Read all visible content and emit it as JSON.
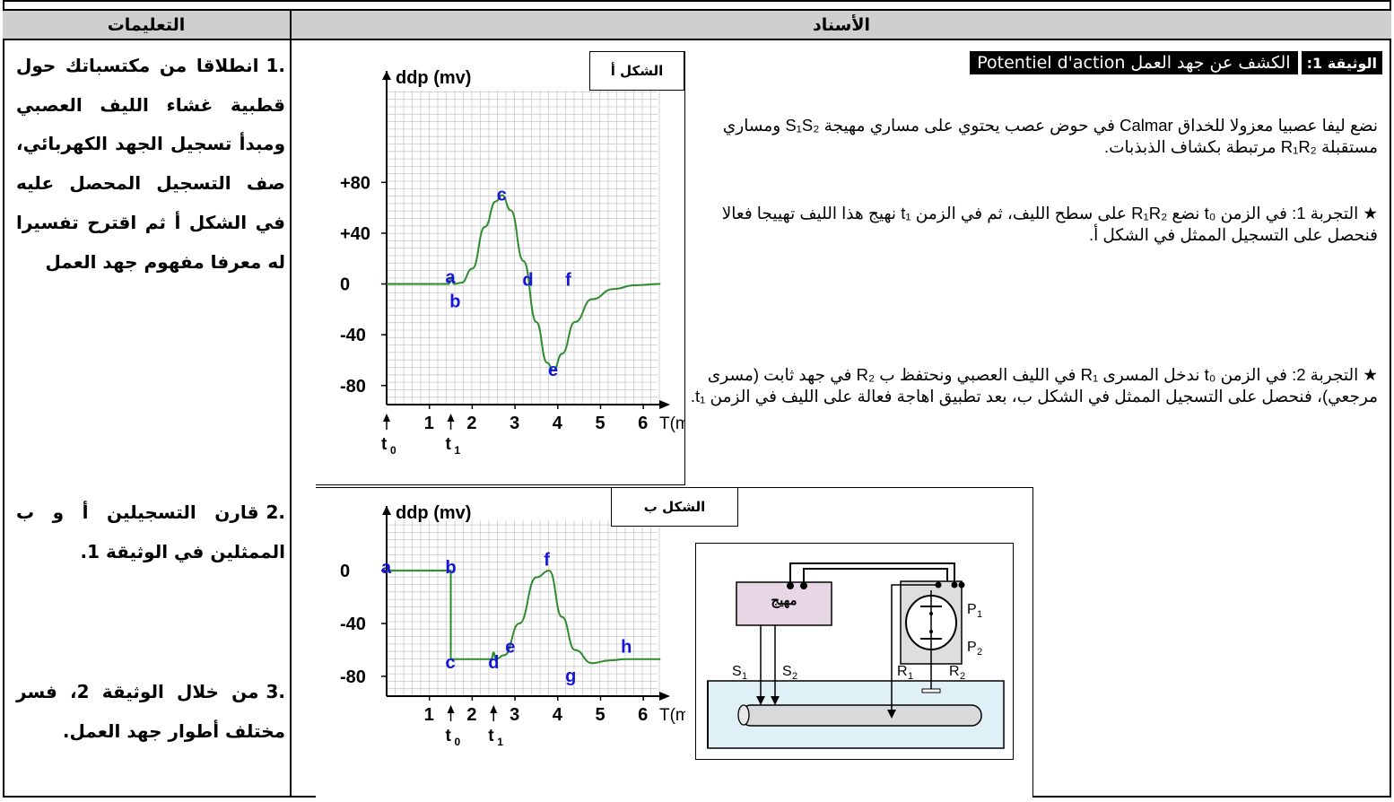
{
  "header": {
    "instructions": "التعليمات",
    "asnad": "الأسناد"
  },
  "questions": [
    {
      "num": ".1",
      "text": "انطلاقا من مكتسباتك حول قطبية غشاء الليف العصبي ومبدأ تسجيل الجهد الكهربائي، صف التسجيل المحصل عليه في الشكل أ ثم اقترح تفسيرا له معرفا مفهوم جهد العمل"
    },
    {
      "num": ".2",
      "text": "قارن التسجيلين أ و ب الممثلين في الوثيقة 1."
    },
    {
      "num": ".3",
      "text": "من خلال الوثيقة 2، فسر مختلف أطوار جهد العمل."
    }
  ],
  "document": {
    "badge": "الوثيقة 1:",
    "title": "الكشف عن جهد العمل Potentiel d'action",
    "intro": "نضع ليفا عصبيا معزولا للخداق Calmar في حوض عصب يحتوي على مساري مهيجة S₁S₂ ومساري مستقبلة R₁R₂ مرتبطة بكشاف الذبذبات.",
    "exp1": "★ التجربة 1: في الزمن t₀ نضع R₁R₂ على سطح الليف، ثم في الزمن t₁ نهيج هذا الليف تهييجا فعالا فنحصل على التسجيل الممثل في الشكل أ.",
    "exp2": "★ التجربة 2: في الزمن t₀ ندخل المسرى R₁ في الليف العصبي ونحتفظ ب R₂ في جهد ثابت (مسرى مرجعي)، فنحصل على التسجيل الممثل في الشكل ب، بعد تطبيق اهاجة فعالة على الليف في الزمن t₁."
  },
  "chart_data": [
    {
      "type": "line",
      "name_tag": "الشكل أ",
      "ylabel": "ddp (mv)",
      "xlabel": "T(ms)",
      "yticks": [
        "+80",
        "+40",
        "0",
        "-40",
        "-80"
      ],
      "ytick_values": [
        80,
        40,
        0,
        -40,
        -80
      ],
      "xticks": [
        "1",
        "2",
        "3",
        "4",
        "5",
        "6"
      ],
      "xlim": [
        0,
        6.5
      ],
      "ylim": [
        -95,
        100
      ],
      "markers": [
        "t0",
        "t1"
      ],
      "marker_times": [
        0,
        1.5
      ],
      "points": {
        "a": [
          1.5,
          5
        ],
        "b": [
          1.6,
          -14
        ],
        "c": [
          2.7,
          70
        ],
        "d": [
          3.3,
          3
        ],
        "e": [
          3.9,
          -68
        ],
        "f": [
          4.3,
          3
        ]
      },
      "x": [
        0,
        1.45,
        1.5,
        1.58,
        1.75,
        2.0,
        2.3,
        2.55,
        2.7,
        2.9,
        3.2,
        3.5,
        3.75,
        3.9,
        4.1,
        4.4,
        4.8,
        5.3,
        5.8,
        6.4
      ],
      "y": [
        0,
        0,
        5,
        0,
        1,
        12,
        45,
        65,
        70,
        58,
        18,
        -30,
        -62,
        -68,
        -55,
        -30,
        -12,
        -4,
        -1,
        0
      ],
      "grid": true
    },
    {
      "type": "line",
      "name_tag": "الشكل ب",
      "ylabel": "ddp (mv)",
      "xlabel": "T(ms)",
      "yticks": [
        "0",
        "-40",
        "-80"
      ],
      "ytick_values": [
        0,
        -40,
        -80
      ],
      "xticks": [
        "1",
        "2",
        "3",
        "4",
        "5",
        "6"
      ],
      "xlim": [
        0,
        6.5
      ],
      "ylim": [
        -95,
        30
      ],
      "markers": [
        "t0",
        "t1"
      ],
      "marker_times": [
        1.5,
        2.5
      ],
      "points": {
        "a": [
          0,
          2
        ],
        "b": [
          1.5,
          2
        ],
        "c": [
          1.5,
          -70
        ],
        "d": [
          2.5,
          -70
        ],
        "e": [
          2.9,
          -58
        ],
        "f": [
          3.8,
          8
        ],
        "g": [
          4.3,
          -80
        ],
        "h": [
          5.6,
          -58
        ]
      },
      "x": [
        0,
        1.5,
        1.5,
        2.45,
        2.5,
        2.55,
        2.75,
        3.1,
        3.5,
        3.8,
        4.1,
        4.4,
        4.8,
        5.2,
        5.6,
        6.4
      ],
      "y": [
        0,
        0,
        -67,
        -67,
        -62,
        -67,
        -64,
        -40,
        -5,
        0,
        -35,
        -60,
        -70,
        -68,
        -67,
        -67
      ],
      "grid": true
    }
  ],
  "apparatus": {
    "stimulator": "مهيج",
    "labels": [
      "S1",
      "S2",
      "R1",
      "R2",
      "P1",
      "P2"
    ]
  }
}
